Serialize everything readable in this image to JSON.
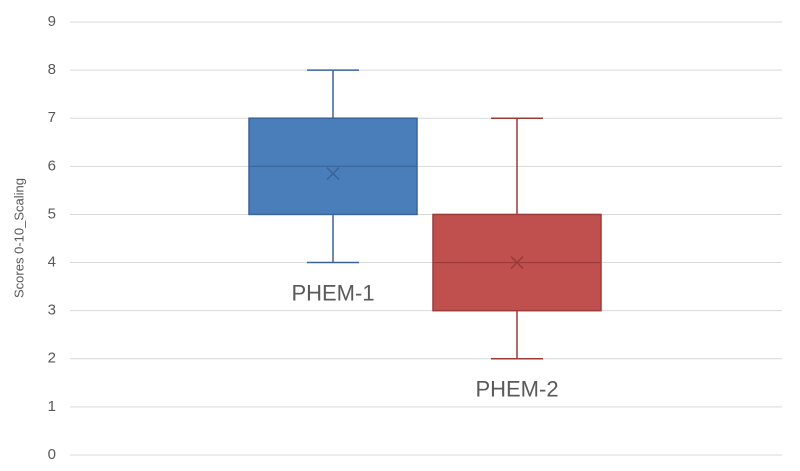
{
  "chart_data": {
    "type": "box",
    "y_label": "Scores 0-10_Scaling",
    "ylim": [
      0,
      9
    ],
    "yticks": [
      0,
      1,
      2,
      3,
      4,
      5,
      6,
      7,
      8,
      9
    ],
    "grid": true,
    "series": [
      {
        "name": "PHEM-1",
        "color": "#4a7ebb",
        "stroke": "#3a649a",
        "min": 4,
        "q1": 5,
        "median": 6,
        "q3": 7,
        "max": 8,
        "mean": 5.85
      },
      {
        "name": "PHEM-2",
        "color": "#c0504d",
        "stroke": "#9b3b39",
        "min": 2,
        "q1": 3,
        "median": 4,
        "q3": 5,
        "max": 7,
        "mean": 4
      }
    ]
  }
}
